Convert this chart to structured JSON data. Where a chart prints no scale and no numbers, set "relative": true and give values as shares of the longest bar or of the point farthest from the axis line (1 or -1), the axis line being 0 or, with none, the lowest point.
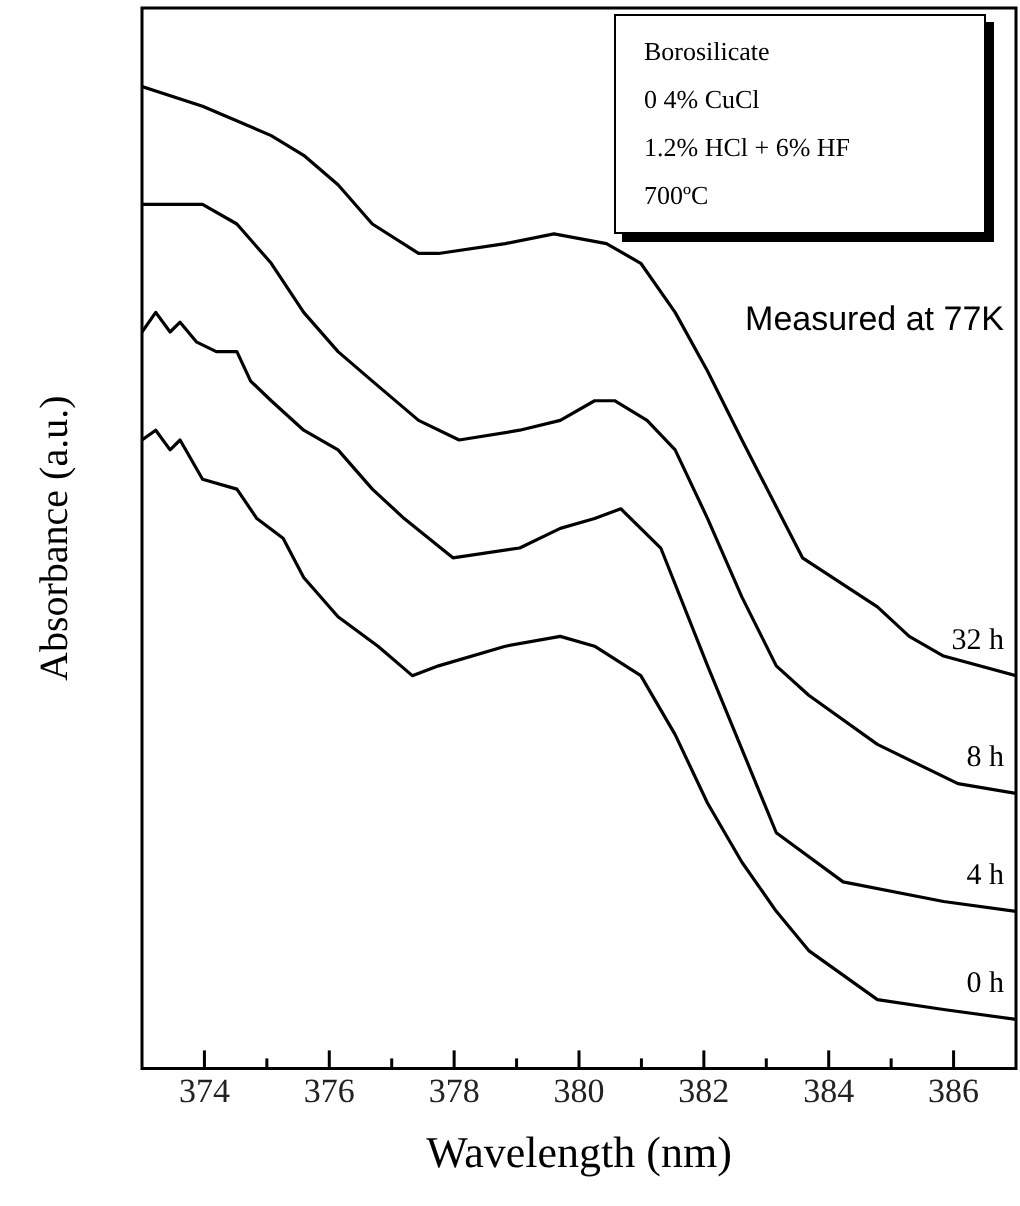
{
  "chart_data": {
    "type": "line",
    "xlabel": "Wavelength (nm)",
    "ylabel": "Absorbance (a.u.)",
    "relative": true,
    "xlim": [
      373,
      387
    ],
    "xticks": [
      374,
      {
        "value": 375,
        "label": null
      },
      376,
      {
        "value": 377,
        "label": null
      },
      378,
      {
        "value": 379,
        "label": null
      },
      380,
      {
        "value": 381,
        "label": null
      },
      382,
      {
        "value": 383,
        "label": null
      },
      384,
      {
        "value": 385,
        "label": null
      },
      386
    ],
    "grid": false,
    "legend": false,
    "marker": "none",
    "line_style": "solid",
    "annotations": [
      "Borosilicate",
      "0 4% CuCl",
      "1.2% HCl + 6% HF",
      "700ºC",
      "Measured at 77K"
    ],
    "series": [
      {
        "name": "32 h",
        "color": "#000000",
        "x": [
          373.0,
          373.97,
          375.07,
          375.59,
          376.14,
          376.69,
          377.43,
          377.75,
          378.82,
          379.6,
          380.44,
          380.99,
          381.54,
          382.06,
          382.61,
          383.58,
          384.78,
          385.29,
          385.84,
          387.0
        ],
        "values": [
          1.0,
          0.98,
          0.95,
          0.93,
          0.9,
          0.86,
          0.83,
          0.83,
          0.84,
          0.85,
          0.84,
          0.82,
          0.77,
          0.71,
          0.64,
          0.52,
          0.47,
          0.44,
          0.42,
          0.4
        ]
      },
      {
        "name": "8 h",
        "color": "#000000",
        "x": [
          373.0,
          373.55,
          373.97,
          374.52,
          375.07,
          375.59,
          376.14,
          376.69,
          377.43,
          378.08,
          379.05,
          379.7,
          380.25,
          380.57,
          381.09,
          381.54,
          382.06,
          382.61,
          383.16,
          383.68,
          384.78,
          386.07,
          387.0
        ],
        "values": [
          0.88,
          0.88,
          0.88,
          0.86,
          0.82,
          0.77,
          0.73,
          0.7,
          0.66,
          0.64,
          0.65,
          0.66,
          0.68,
          0.68,
          0.66,
          0.63,
          0.56,
          0.48,
          0.41,
          0.38,
          0.33,
          0.29,
          0.28
        ]
      },
      {
        "name": "4 h",
        "color": "#000000",
        "x": [
          373.0,
          373.22,
          373.45,
          373.61,
          373.87,
          374.19,
          374.52,
          374.74,
          375.07,
          375.59,
          376.14,
          376.69,
          377.2,
          377.98,
          379.05,
          379.7,
          380.25,
          380.67,
          381.31,
          382.06,
          383.16,
          384.23,
          385.84,
          387.0
        ],
        "values": [
          0.75,
          0.77,
          0.75,
          0.76,
          0.74,
          0.73,
          0.73,
          0.7,
          0.68,
          0.65,
          0.63,
          0.59,
          0.56,
          0.52,
          0.53,
          0.55,
          0.56,
          0.57,
          0.53,
          0.41,
          0.24,
          0.19,
          0.17,
          0.16
        ]
      },
      {
        "name": "0 h",
        "color": "#000000",
        "x": [
          373.0,
          373.22,
          373.45,
          373.61,
          373.97,
          374.52,
          374.84,
          375.26,
          375.59,
          376.14,
          376.78,
          377.33,
          377.75,
          378.82,
          379.7,
          380.25,
          380.99,
          381.54,
          382.06,
          382.61,
          383.16,
          383.68,
          384.78,
          385.84,
          387.0
        ],
        "values": [
          0.64,
          0.65,
          0.63,
          0.64,
          0.6,
          0.59,
          0.56,
          0.54,
          0.5,
          0.46,
          0.43,
          0.4,
          0.41,
          0.43,
          0.44,
          0.43,
          0.4,
          0.34,
          0.27,
          0.21,
          0.16,
          0.12,
          0.07,
          0.06,
          0.05
        ]
      }
    ]
  }
}
